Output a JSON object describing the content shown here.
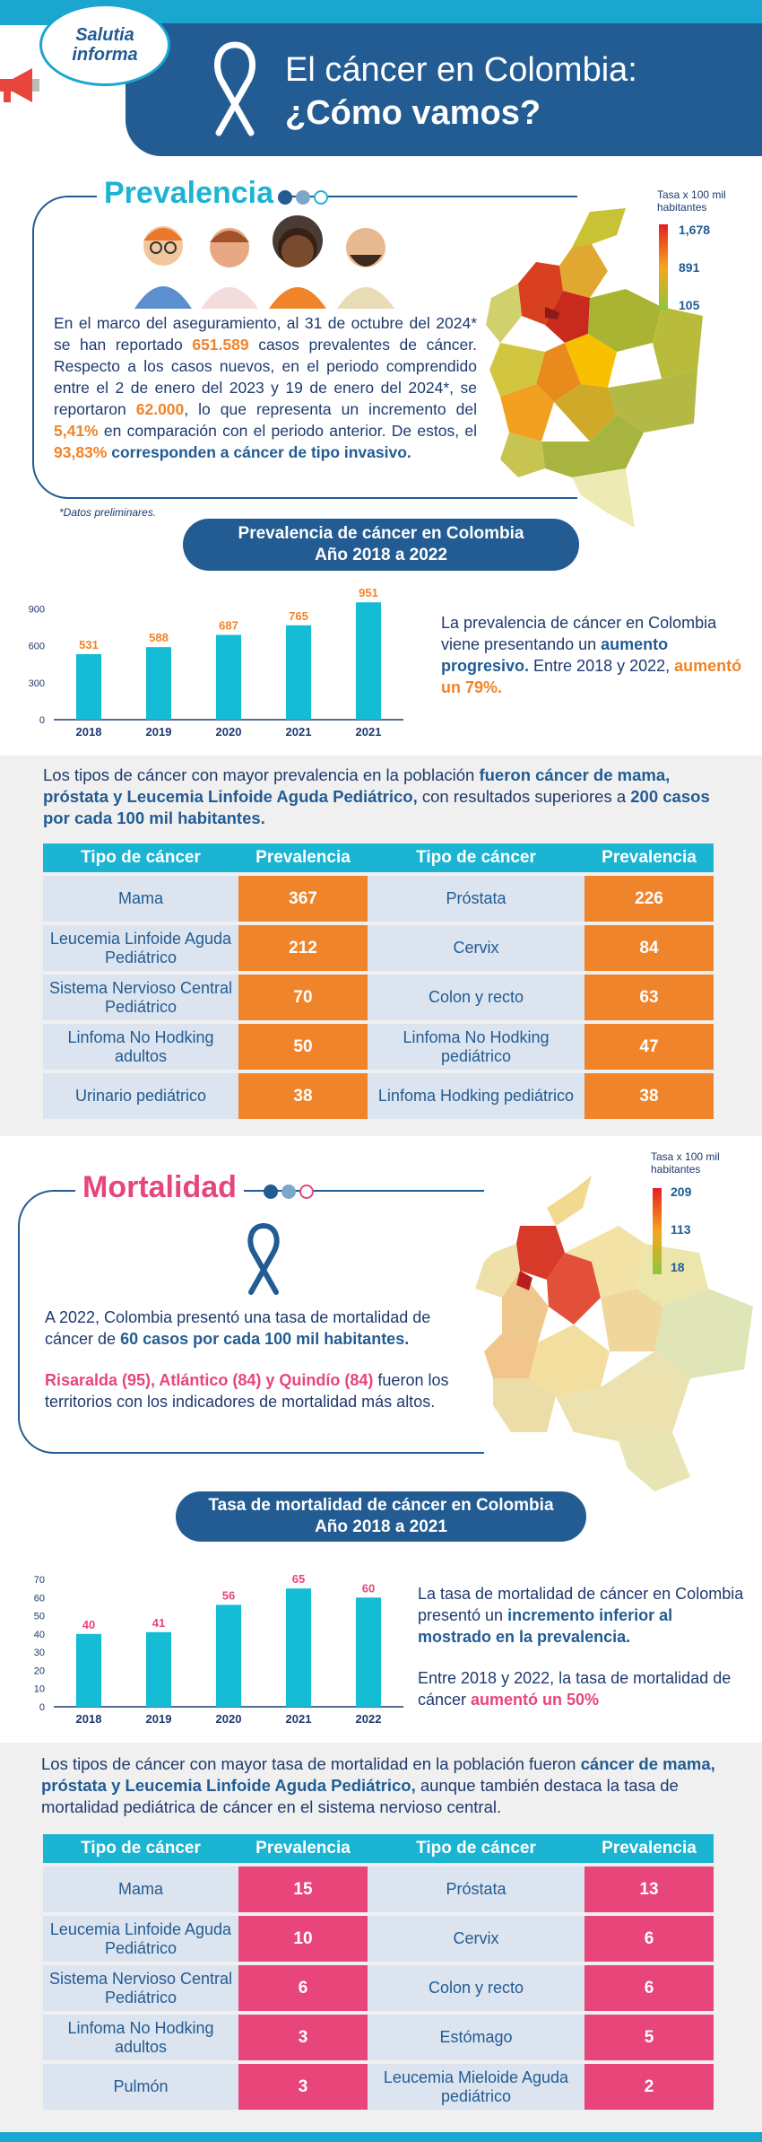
{
  "header": {
    "badge_line1": "Salutia",
    "badge_line2": "informa",
    "title_line1": "El cáncer en Colombia:",
    "title_line2": "¿Cómo vamos?"
  },
  "prevalence": {
    "title": "Prevalencia",
    "p1": "En el marco del aseguramiento, al 31 de octubre del 2024* se han reportado ",
    "p1_num": "651.589",
    "p2": " casos prevalentes de cáncer. Respecto a los casos nuevos, en el periodo comprendido entre el 2 de enero del 2023 y 19 de enero del 2024*, se reportaron ",
    "p2_num": "62.000",
    "p3": ", lo que representa un incremento del ",
    "p3_num": "5,41%",
    "p4": " en comparación con el periodo anterior. De estos, el ",
    "p4_num": "93,83%",
    "p4_bold": " corresponden a cáncer de tipo invasivo.",
    "footnote": "*Datos preliminares.",
    "map_legend": {
      "title_line1": "Tasa x 100 mil",
      "title_line2": "habitantes",
      "max": "1,678",
      "mid": "891",
      "min": "105"
    },
    "chart_title_line1": "Prevalencia de cáncer en Colombia",
    "chart_title_line2": "Año 2018 a 2022",
    "side_p1": "La prevalencia de cáncer en Colombia viene presentando un ",
    "side_bold": "aumento progresivo.",
    "side_p2": " Entre 2018 y 2022, ",
    "side_orange": "aumentó un 79%."
  },
  "prev_types": {
    "intro1": "Los tipos de cáncer con mayor prevalencia en la población ",
    "intro_bold": "fueron cáncer de mama, próstata y Leucemia Linfoide Aguda Pediátrico,",
    "intro2": " con resultados superiores a ",
    "intro_bold2": "200 casos por cada 100 mil habitantes.",
    "headers": [
      "Tipo de cáncer",
      "Prevalencia",
      "Tipo de cáncer",
      "Prevalencia"
    ],
    "rows": [
      {
        "n1": "Mama",
        "v1": "367",
        "n2": "Próstata",
        "v2": "226"
      },
      {
        "n1": "Leucemia Linfoide Aguda Pediátrico",
        "v1": "212",
        "n2": "Cervix",
        "v2": "84"
      },
      {
        "n1": "Sistema Nervioso Central Pediátrico",
        "v1": "70",
        "n2": "Colon y recto",
        "v2": "63"
      },
      {
        "n1": "Linfoma No Hodking adultos",
        "v1": "50",
        "n2": "Linfoma No Hodking pediátrico",
        "v2": "47"
      },
      {
        "n1": "Urinario pediátrico",
        "v1": "38",
        "n2": "Linfoma Hodking pediátrico",
        "v2": "38"
      }
    ]
  },
  "mortality": {
    "title": "Mortalidad",
    "p1": "A 2022, Colombia presentó una tasa de mortalidad de cáncer de ",
    "p1_bold": "60 casos por cada 100 mil habitantes.",
    "p2_pink": "Risaralda (95), Atlántico (84) y Quindío (84)",
    "p2": " fueron los territorios con los indicadores de mortalidad más altos.",
    "map_legend": {
      "title_line1": "Tasa x 100 mil",
      "title_line2": "habitantes",
      "max": "209",
      "mid": "113",
      "min": "18"
    },
    "chart_title_line1": "Tasa de mortalidad de cáncer en Colombia",
    "chart_title_line2": "Año 2018 a 2021",
    "side_p1": "La tasa de mortalidad de cáncer en Colombia presentó un ",
    "side_bold": "incremento inferior al mostrado en la prevalencia.",
    "side_p2": "Entre 2018 y 2022, la tasa de mortalidad de cáncer ",
    "side_pink": "aumentó un 50%"
  },
  "mort_types": {
    "intro1": "Los tipos de cáncer con mayor tasa de mortalidad en la población fueron ",
    "intro_bold": "cáncer de mama, próstata y Leucemia Linfoide Aguda Pediátrico,",
    "intro2": " aunque también destaca la tasa de mortalidad pediátrica de cáncer en el sistema nervioso central.",
    "headers": [
      "Tipo de cáncer",
      "Prevalencia",
      "Tipo de cáncer",
      "Prevalencia"
    ],
    "rows": [
      {
        "n1": "Mama",
        "v1": "15",
        "n2": "Próstata",
        "v2": "13"
      },
      {
        "n1": "Leucemia Linfoide Aguda Pediátrico",
        "v1": "10",
        "n2": "Cervix",
        "v2": "6"
      },
      {
        "n1": "Sistema Nervioso Central Pediátrico",
        "v1": "6",
        "n2": "Colon y recto",
        "v2": "6"
      },
      {
        "n1": "Linfoma No Hodking adultos",
        "v1": "3",
        "n2": "Estómago",
        "v2": "5"
      },
      {
        "n1": "Pulmón",
        "v1": "3",
        "n2": "Leucemia Mieloide Aguda pediátrico",
        "v2": "2"
      }
    ]
  },
  "colors": {
    "orange": "#f0842a",
    "pink": "#e8457a",
    "navy": "#225c93",
    "cyan": "#1bb4d2",
    "bar": "#14bcd6"
  },
  "chart_data": [
    {
      "type": "bar",
      "categories": [
        "2018",
        "2019",
        "2020",
        "2021",
        "2021"
      ],
      "values": [
        531,
        588,
        687,
        765,
        951
      ],
      "yticks": [
        0,
        300,
        600,
        900
      ],
      "ylim": [
        0,
        960
      ],
      "label_color": "#f0842a"
    },
    {
      "type": "bar",
      "categories": [
        "2018",
        "2019",
        "2020",
        "2021",
        "2022"
      ],
      "values": [
        40,
        41,
        56,
        65,
        60
      ],
      "yticks": [
        0,
        10,
        20,
        30,
        40,
        50,
        60,
        70
      ],
      "ylim": [
        0,
        70
      ],
      "label_color": "#e8457a"
    }
  ]
}
